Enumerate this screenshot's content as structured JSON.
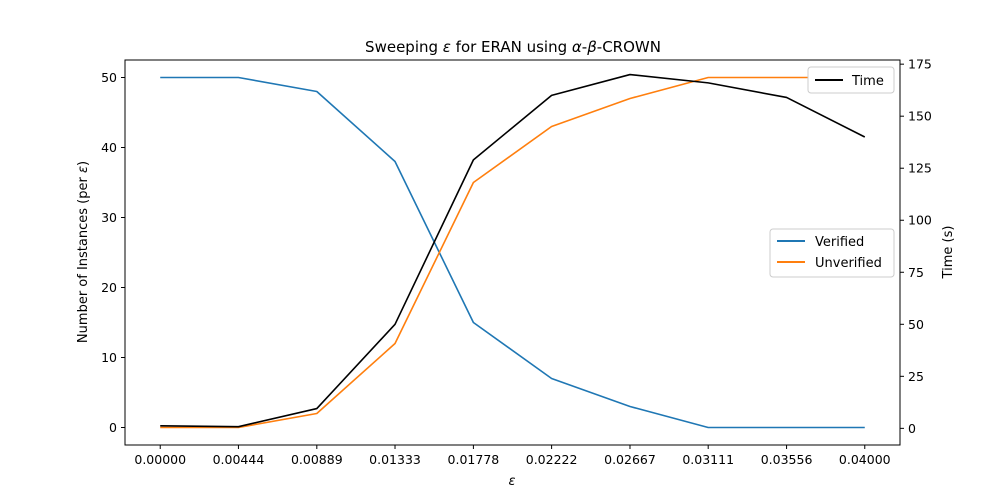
{
  "chart_data": {
    "type": "line",
    "title_parts": {
      "prefix": "Sweeping ",
      "epsilon": "ε",
      "middle": " for ERAN using ",
      "alpha": "α",
      "dash1": "-",
      "beta": "β",
      "suffix": "-CROWN"
    },
    "xlabel": "ε",
    "ylabel_left_prefix": "Number of Instances (per ",
    "ylabel_left_eps": "ε",
    "ylabel_left_suffix": ")",
    "ylabel_right": "Time (s)",
    "x": [
      0.0,
      0.00444,
      0.00889,
      0.01333,
      0.01778,
      0.02222,
      0.02667,
      0.03111,
      0.03556,
      0.04
    ],
    "x_tick_labels": [
      "0.00000",
      "0.00444",
      "0.00889",
      "0.01333",
      "0.01778",
      "0.02222",
      "0.02667",
      "0.03111",
      "0.03556",
      "0.04000"
    ],
    "xlim": [
      -0.002,
      0.042
    ],
    "left_axis": {
      "ylim": [
        -2.5,
        52.5
      ],
      "ticks": [
        0,
        10,
        20,
        30,
        40,
        50
      ],
      "series": [
        {
          "name": "Verified",
          "color": "#1f77b4",
          "values": [
            50,
            50,
            48,
            38,
            15,
            7,
            3,
            0,
            0,
            0
          ]
        },
        {
          "name": "Unverified",
          "color": "#ff7f0e",
          "values": [
            0,
            0,
            2,
            12,
            35,
            43,
            47,
            50,
            50,
            50
          ]
        }
      ]
    },
    "right_axis": {
      "ylim": [
        -8,
        177
      ],
      "ticks": [
        0,
        25,
        50,
        75,
        100,
        125,
        150,
        175
      ],
      "series": [
        {
          "name": "Time",
          "color": "#000000",
          "values": [
            1.2,
            0.8,
            9.5,
            50,
            129,
            160,
            170,
            166,
            159,
            140
          ]
        }
      ]
    },
    "legends": {
      "right_axis": "top-right",
      "left_axis": "center-right"
    },
    "grid": false
  }
}
